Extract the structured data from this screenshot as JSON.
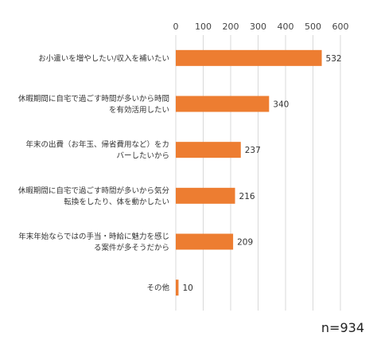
{
  "chart_data": {
    "type": "bar",
    "orientation": "horizontal",
    "categories": [
      [
        "お小遣いを増やしたい/収入を補いたい"
      ],
      [
        "休暇期間に自宅で過ごす時間が多いから時間",
        "を有効活用したい"
      ],
      [
        "年末の出費（お年玉、帰省費用など）をカ",
        "バーしたいから"
      ],
      [
        "休暇期間に自宅で過ごす時間が多いから気分",
        "転換をしたり、体を動かしたい"
      ],
      [
        "年末年始ならではの手当・時給に魅力を感じ",
        "る案件が多そうだから"
      ],
      [
        "その他"
      ]
    ],
    "values": [
      532,
      340,
      237,
      216,
      209,
      10
    ],
    "xlim": [
      0,
      600
    ],
    "ticks": [
      0,
      100,
      200,
      300,
      400,
      500,
      600
    ],
    "grid": true,
    "bar_color": "#ED7D31",
    "gridline_color": "#D9D9D9",
    "title": "",
    "xlabel": "",
    "ylabel": ""
  },
  "footer": {
    "n_label": "n=934"
  }
}
